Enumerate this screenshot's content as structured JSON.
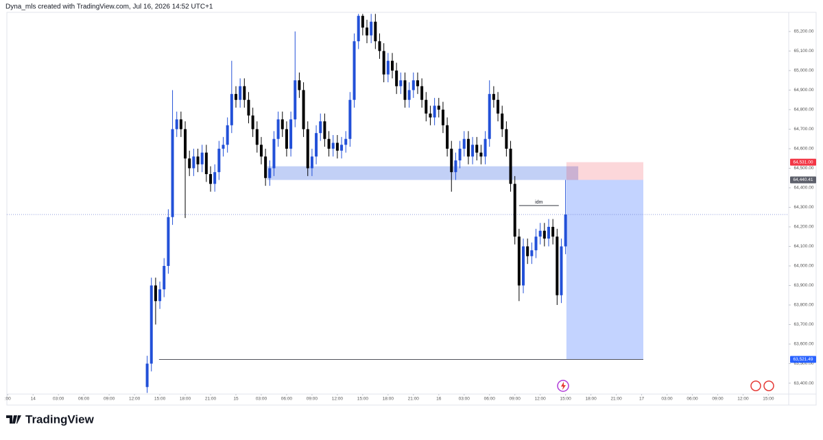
{
  "header": "Dyna_mls created with TradingView.com, Jul 16, 2026 14:52 UTC+1",
  "footer": "TradingView",
  "chart_data": {
    "type": "candlestick",
    "up_color": "#2250d8",
    "down_color": "#000000",
    "xlim": [
      -3.1,
      89.4
    ],
    "ylim": [
      63344,
      65298
    ],
    "xticks": [
      {
        "value": -3,
        "label": ":00"
      },
      {
        "value": 0,
        "label": "14"
      },
      {
        "value": 3,
        "label": "03:00"
      },
      {
        "value": 6,
        "label": "06:00"
      },
      {
        "value": 9,
        "label": "09:00"
      },
      {
        "value": 12,
        "label": "12:00"
      },
      {
        "value": 15,
        "label": "15:00"
      },
      {
        "value": 18,
        "label": "18:00"
      },
      {
        "value": 21,
        "label": "21:00"
      },
      {
        "value": 24,
        "label": "15"
      },
      {
        "value": 27,
        "label": "03:00"
      },
      {
        "value": 30,
        "label": "06:00"
      },
      {
        "value": 33,
        "label": "09:00"
      },
      {
        "value": 36,
        "label": "12:00"
      },
      {
        "value": 39,
        "label": "15:00"
      },
      {
        "value": 42,
        "label": "18:00"
      },
      {
        "value": 45,
        "label": "21:00"
      },
      {
        "value": 48,
        "label": "16"
      },
      {
        "value": 51,
        "label": "03:00"
      },
      {
        "value": 54,
        "label": "06:00"
      },
      {
        "value": 57,
        "label": "09:00"
      },
      {
        "value": 60,
        "label": "12:00"
      },
      {
        "value": 63,
        "label": "15:00"
      },
      {
        "value": 66,
        "label": "18:00"
      },
      {
        "value": 69,
        "label": "21:00"
      },
      {
        "value": 72,
        "label": "17"
      },
      {
        "value": 75,
        "label": "03:00"
      },
      {
        "value": 78,
        "label": "06:00"
      },
      {
        "value": 81,
        "label": "09:00"
      },
      {
        "value": 84,
        "label": "12:00"
      },
      {
        "value": 87,
        "label": "15:00"
      }
    ],
    "yticks": [
      {
        "value": 63400,
        "label": "63,400.00"
      },
      {
        "value": 63500,
        "label": "63,500.00"
      },
      {
        "value": 63600,
        "label": "63,600.00"
      },
      {
        "value": 63700,
        "label": "63,700.00"
      },
      {
        "value": 63800,
        "label": "63,800.00"
      },
      {
        "value": 63900,
        "label": "63,900.00"
      },
      {
        "value": 64000,
        "label": "64,000.00"
      },
      {
        "value": 64100,
        "label": "64,100.00"
      },
      {
        "value": 64200,
        "label": "64,200.00"
      },
      {
        "value": 64300,
        "label": "64,300.00"
      },
      {
        "value": 64400,
        "label": "64,400.00"
      },
      {
        "value": 64500,
        "label": "64,500.00"
      },
      {
        "value": 64600,
        "label": "64,600.00"
      },
      {
        "value": 64700,
        "label": "64,700.00"
      },
      {
        "value": 64800,
        "label": "64,800.00"
      },
      {
        "value": 64900,
        "label": "64,900.00"
      },
      {
        "value": 65000,
        "label": "65,000.00"
      },
      {
        "value": 65100,
        "label": "65,100.00"
      },
      {
        "value": 65200,
        "label": "65,200.00"
      }
    ],
    "x": [
      13.5,
      14,
      14.5,
      15,
      15.5,
      16,
      16.5,
      17,
      17.5,
      18,
      18.5,
      19,
      19.5,
      20,
      20.5,
      21,
      21.5,
      22,
      22.5,
      23,
      23.5,
      24,
      24.5,
      25,
      25.5,
      26,
      26.5,
      27,
      27.5,
      28,
      28.5,
      29,
      29.5,
      30,
      30.5,
      31,
      31.5,
      32,
      32.5,
      33,
      33.5,
      34,
      34.5,
      35,
      35.5,
      36,
      36.5,
      37,
      37.5,
      38,
      38.5,
      39,
      39.5,
      40,
      40.5,
      41,
      41.5,
      42,
      42.5,
      43,
      43.5,
      44,
      44.5,
      45,
      45.5,
      46,
      46.5,
      47,
      47.5,
      48,
      48.5,
      49,
      49.5,
      50,
      50.5,
      51,
      51.5,
      52,
      52.5,
      53,
      53.5,
      54,
      54.5,
      55,
      55.5,
      56,
      56.5,
      57,
      57.5,
      58,
      58.5,
      59,
      59.5,
      60,
      60.5,
      61,
      61.5,
      62,
      62.5,
      63
    ],
    "open": [
      63380,
      63500,
      63900,
      63820,
      63880,
      64000,
      64250,
      64700,
      64750,
      64700,
      64550,
      64500,
      64560,
      64520,
      64580,
      64470,
      64420,
      64480,
      64600,
      64620,
      64720,
      64880,
      64850,
      64920,
      64850,
      64770,
      64700,
      64620,
      64560,
      64450,
      64500,
      64650,
      64750,
      64700,
      64600,
      64750,
      64950,
      64900,
      64700,
      64500,
      64560,
      64680,
      64740,
      64650,
      64600,
      64630,
      64590,
      64620,
      64650,
      64850,
      65150,
      65280,
      65220,
      65180,
      65250,
      65150,
      65100,
      64980,
      65050,
      65000,
      64920,
      64950,
      64850,
      64900,
      64950,
      64920,
      64850,
      64780,
      64760,
      64820,
      64800,
      64720,
      64600,
      64480,
      64540,
      64600,
      64650,
      64560,
      64620,
      64580,
      64560,
      64650,
      64880,
      64850,
      64780,
      64700,
      64600,
      64420,
      64150,
      63900,
      64100,
      64050,
      64080,
      64150,
      64180,
      64140,
      64200,
      64150,
      63850,
      64100
    ],
    "high": [
      63540,
      63940,
      63940,
      63920,
      64040,
      64290,
      64900,
      64790,
      64790,
      64740,
      64590,
      64600,
      64600,
      64620,
      64620,
      64510,
      64520,
      64640,
      64660,
      64760,
      65050,
      64920,
      64960,
      64960,
      64890,
      64810,
      64740,
      64660,
      64600,
      64540,
      64690,
      64790,
      64790,
      64740,
      64790,
      65200,
      64990,
      64940,
      64740,
      64600,
      64720,
      64780,
      64780,
      64690,
      64670,
      64670,
      64660,
      64690,
      64890,
      65190,
      65290,
      65290,
      65260,
      65290,
      65290,
      65190,
      65140,
      65090,
      65090,
      65040,
      64990,
      64990,
      64940,
      64990,
      64990,
      64960,
      64890,
      64820,
      64860,
      64860,
      64840,
      64760,
      64640,
      64580,
      64640,
      64690,
      64690,
      64660,
      64660,
      64620,
      64690,
      64950,
      64920,
      64890,
      64820,
      64740,
      64640,
      64460,
      64190,
      64140,
      64140,
      64120,
      64190,
      64220,
      64220,
      64240,
      64240,
      64190,
      64140,
      64440
    ],
    "low": [
      63350,
      63460,
      63700,
      63780,
      63840,
      63960,
      64210,
      64660,
      64660,
      64245,
      64460,
      64460,
      64480,
      64480,
      64430,
      64380,
      64380,
      64440,
      64560,
      64580,
      64680,
      64810,
      64810,
      64810,
      64730,
      64660,
      64580,
      64520,
      64410,
      64410,
      64460,
      64610,
      64660,
      64560,
      64560,
      64710,
      64860,
      64660,
      64460,
      64460,
      64520,
      64640,
      64610,
      64560,
      64560,
      64550,
      64550,
      64580,
      64610,
      64810,
      65110,
      65180,
      65140,
      65140,
      65110,
      65060,
      64940,
      64940,
      64960,
      64880,
      64880,
      64810,
      64810,
      64860,
      64880,
      64810,
      64740,
      64720,
      64720,
      64760,
      64680,
      64560,
      64380,
      64440,
      64500,
      64560,
      64520,
      64520,
      64540,
      64520,
      64520,
      64610,
      64810,
      64740,
      64660,
      64560,
      64380,
      64110,
      63820,
      63860,
      64010,
      64010,
      64040,
      64110,
      64100,
      64100,
      64110,
      63800,
      63810,
      64060
    ],
    "close": [
      63500,
      63900,
      63820,
      63880,
      64000,
      64250,
      64700,
      64750,
      64700,
      64550,
      64500,
      64560,
      64520,
      64580,
      64470,
      64420,
      64480,
      64600,
      64620,
      64720,
      64880,
      64850,
      64920,
      64850,
      64770,
      64700,
      64620,
      64560,
      64450,
      64500,
      64650,
      64750,
      64700,
      64600,
      64750,
      64950,
      64900,
      64700,
      64500,
      64560,
      64680,
      64740,
      64650,
      64600,
      64630,
      64590,
      64620,
      64650,
      64850,
      65150,
      65280,
      65220,
      65180,
      65250,
      65150,
      65100,
      64980,
      65050,
      65000,
      64920,
      64950,
      64850,
      64900,
      64950,
      64920,
      64850,
      64780,
      64760,
      64820,
      64800,
      64720,
      64600,
      64480,
      64540,
      64600,
      64650,
      64560,
      64620,
      64580,
      64560,
      64650,
      64880,
      64850,
      64780,
      64700,
      64600,
      64420,
      64150,
      63900,
      64100,
      64050,
      64080,
      64150,
      64180,
      64140,
      64200,
      64150,
      63850,
      64100,
      64263
    ],
    "last_price": 64263,
    "zone": {
      "x": [
        27.7,
        64.5
      ],
      "top": 64510,
      "bottom": 64440
    },
    "position": {
      "x": [
        63.1,
        72.2
      ],
      "stop": {
        "value": 64531.0,
        "label": "64,531.00"
      },
      "entry": {
        "value": 64440.41,
        "label": "64,440.41"
      },
      "target": {
        "value": 63521.49,
        "label": "63,521.49"
      }
    },
    "target_line": {
      "x": [
        14.9,
        72.2
      ],
      "price": 63521.49
    },
    "idm": {
      "label": "idm",
      "x": [
        57.5,
        62.2
      ],
      "price": 64309
    }
  }
}
